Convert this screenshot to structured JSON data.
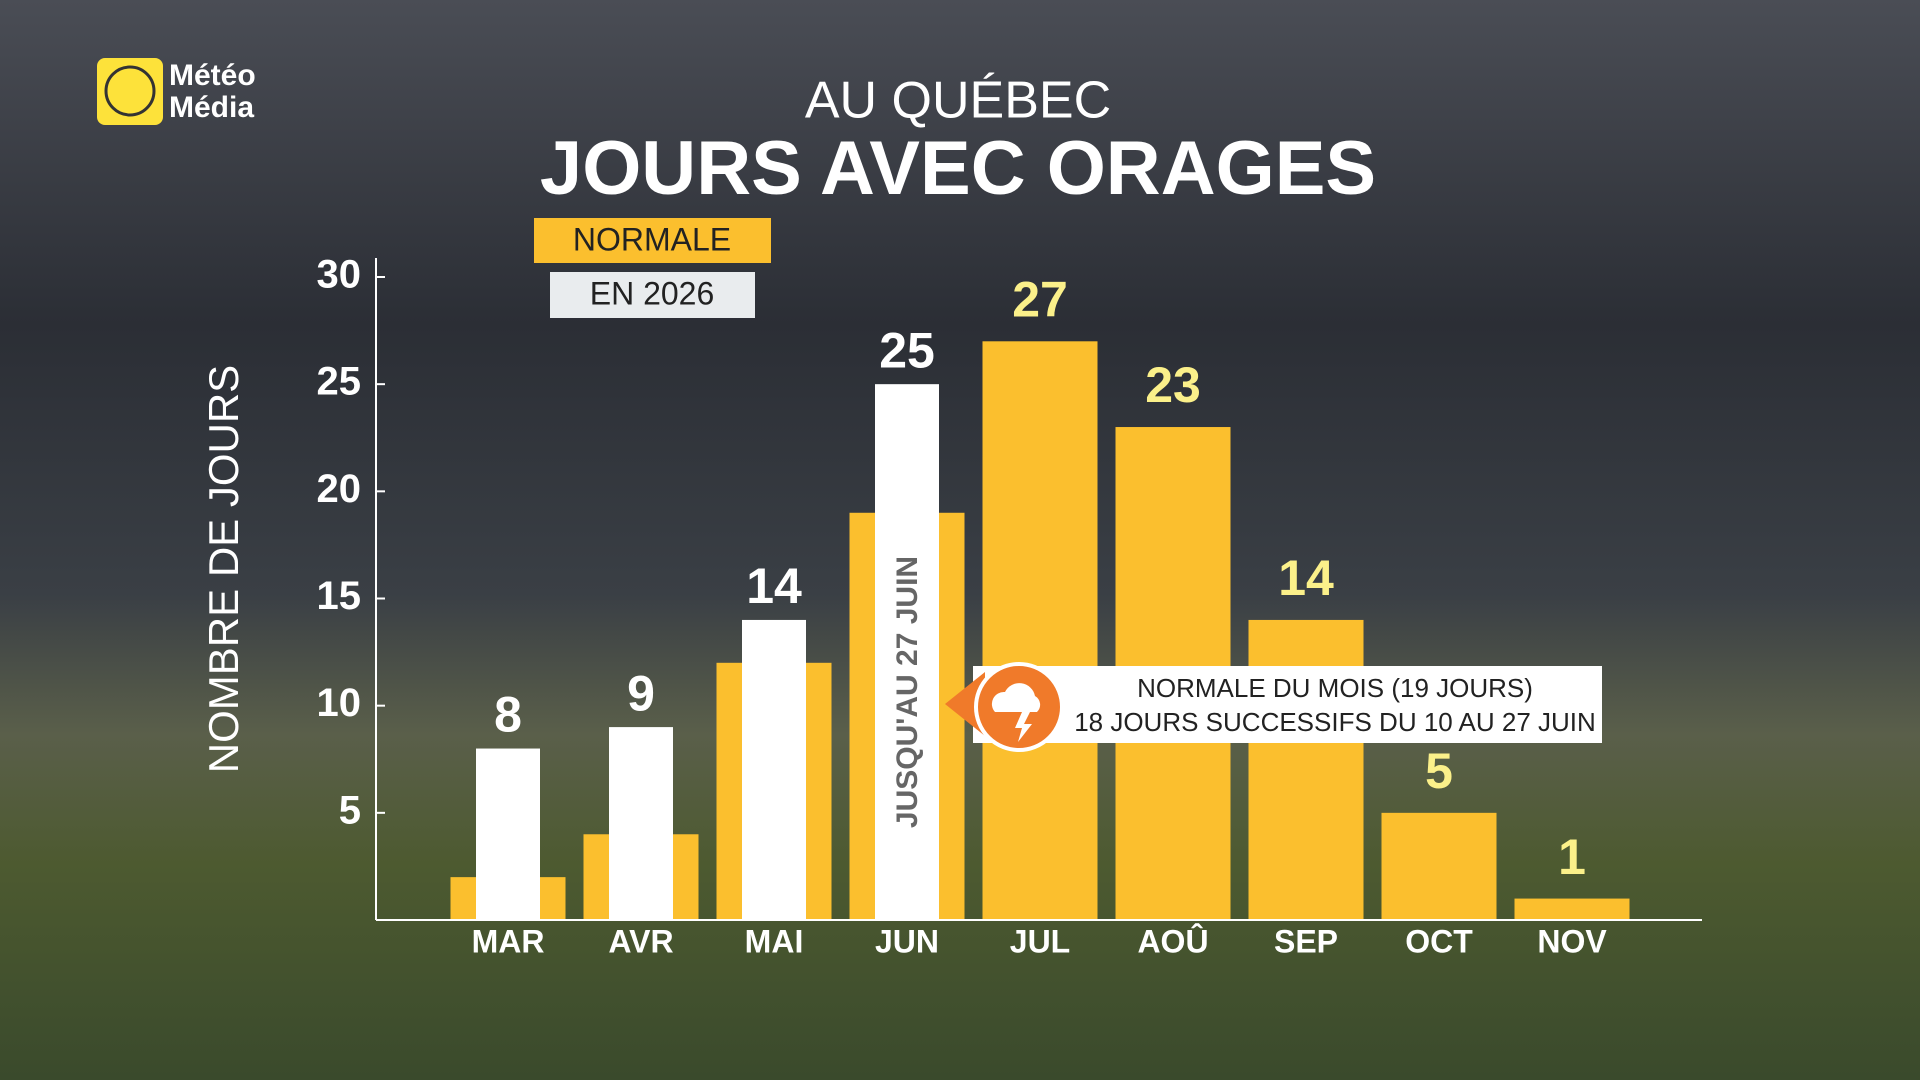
{
  "brand": [
    "Météo",
    "Média"
  ],
  "chart_data": {
    "type": "bar",
    "subtitle": "AU QUÉBEC",
    "title": "JOURS AVEC ORAGES",
    "y_label": "NOMBRE DE JOURS",
    "categories": [
      "MAR",
      "AVR",
      "MAI",
      "JUN",
      "JUL",
      "AOÛ",
      "SEP",
      "OCT",
      "NOV"
    ],
    "series": [
      {
        "name": "NORMALE",
        "color": "#fbbf2e",
        "values": [
          2,
          4,
          12,
          19,
          27,
          23,
          14,
          5,
          1
        ]
      },
      {
        "name": "EN 2026",
        "color": "#ffffff",
        "values": [
          8,
          9,
          14,
          25,
          null,
          null,
          null,
          null,
          null
        ]
      }
    ],
    "ylim": [
      0,
      30
    ],
    "yticks": [
      5,
      10,
      15,
      20,
      25,
      30
    ],
    "annotations": [
      "JUSQU'AU 27 JUIN",
      "NORMALE DU MOIS (19 JOURS)",
      "18 JOURS SUCCESSIFS DU 10 AU 27 JUIN"
    ]
  }
}
